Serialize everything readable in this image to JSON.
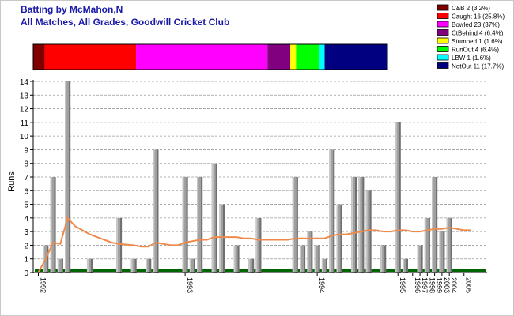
{
  "header": {
    "title": "Batting by McMahon,N",
    "subtitle": "All Matches, All Grades, Goodwill Cricket Club"
  },
  "chart_data": {
    "type": "bar",
    "ylabel": "Runs",
    "ylim": [
      0,
      14
    ],
    "yticks": [
      0,
      1,
      2,
      3,
      4,
      5,
      6,
      7,
      8,
      9,
      10,
      11,
      12,
      13,
      14
    ],
    "grid": true,
    "legend_position": "top-right",
    "dismissals": [
      {
        "label": "C&B 2 (3.2%)",
        "name": "C&B",
        "count": 2,
        "pct": 3.2,
        "color": "#800000"
      },
      {
        "label": "Caught 16 (25.8%)",
        "name": "Caught",
        "count": 16,
        "pct": 25.8,
        "color": "#ff0000"
      },
      {
        "label": "Bowled 23 (37%)",
        "name": "Bowled",
        "count": 23,
        "pct": 37,
        "color": "#ff00ff"
      },
      {
        "label": "CtBehind 4 (6.4%)",
        "name": "CtBehind",
        "count": 4,
        "pct": 6.4,
        "color": "#800080"
      },
      {
        "label": "Stumped 1 (1.6%)",
        "name": "Stumped",
        "count": 1,
        "pct": 1.6,
        "color": "#ffff00"
      },
      {
        "label": "RunOut 4 (6.4%)",
        "name": "RunOut",
        "count": 4,
        "pct": 6.4,
        "color": "#00ff00"
      },
      {
        "label": "LBW 1 (1.6%)",
        "name": "LBW",
        "count": 1,
        "pct": 1.6,
        "color": "#00ffff"
      },
      {
        "label": "NotOut 11 (17.7%)",
        "name": "NotOut",
        "count": 11,
        "pct": 17.7,
        "color": "#000080"
      }
    ],
    "innings": [
      0,
      2,
      7,
      1,
      14,
      0,
      0,
      1,
      0,
      0,
      0,
      4,
      0,
      1,
      0,
      1,
      9,
      0,
      0,
      0,
      7,
      1,
      7,
      0,
      8,
      5,
      0,
      2,
      0,
      1,
      4,
      0,
      0,
      0,
      0,
      7,
      2,
      3,
      2,
      1,
      9,
      5,
      0,
      7,
      7,
      6,
      0,
      2,
      0,
      11,
      1,
      0,
      2,
      4,
      7,
      3,
      4,
      0,
      0,
      0
    ],
    "average": [
      0,
      1.0,
      2.2,
      2.1,
      4.0,
      3.4,
      3.1,
      2.8,
      2.6,
      2.4,
      2.2,
      2.1,
      2.05,
      2.0,
      1.9,
      1.9,
      2.2,
      2.1,
      2.0,
      2.0,
      2.2,
      2.3,
      2.4,
      2.4,
      2.6,
      2.6,
      2.6,
      2.6,
      2.5,
      2.5,
      2.4,
      2.4,
      2.4,
      2.4,
      2.4,
      2.5,
      2.5,
      2.5,
      2.5,
      2.5,
      2.7,
      2.8,
      2.8,
      2.9,
      3.0,
      3.1,
      3.1,
      3.0,
      3.0,
      3.1,
      3.1,
      3.0,
      3.0,
      3.1,
      3.2,
      3.2,
      3.3,
      3.2,
      3.1,
      3.1
    ],
    "x_tick_labels": [
      {
        "label": "1992",
        "index": 0
      },
      {
        "label": "1993",
        "index": 20
      },
      {
        "label": "1994",
        "index": 38
      },
      {
        "label": "1995",
        "index": 49
      },
      {
        "label": "1996",
        "index": 51
      },
      {
        "label": "1997",
        "index": 52
      },
      {
        "label": "1998",
        "index": 53
      },
      {
        "label": "1999",
        "index": 54
      },
      {
        "label": "2003",
        "index": 55
      },
      {
        "label": "2004",
        "index": 56
      },
      {
        "label": "2005",
        "index": 58
      }
    ],
    "colors": {
      "bar": "#a0a0a0",
      "average_line": "#f08a4b",
      "baseline": "#006400",
      "grid": "#999999",
      "axis": "#000000"
    }
  }
}
